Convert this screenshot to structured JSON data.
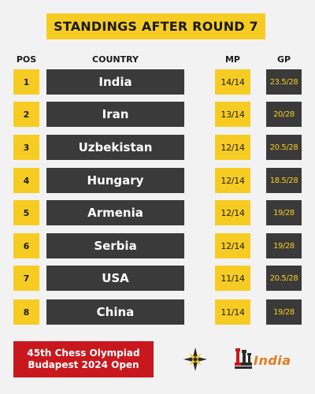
{
  "title": "STANDINGS AFTER ROUND 7",
  "headers": {
    "pos": "POS",
    "country": "COUNTRY",
    "mp": "MP",
    "gp": "GP"
  },
  "rows": [
    {
      "pos": "1",
      "country": "India",
      "mp": "14/14",
      "gp": "23.5/28"
    },
    {
      "pos": "2",
      "country": "Iran",
      "mp": "13/14",
      "gp": "20/28"
    },
    {
      "pos": "3",
      "country": "Uzbekistan",
      "mp": "12/14",
      "gp": "20.5/28"
    },
    {
      "pos": "4",
      "country": "Hungary",
      "mp": "12/14",
      "gp": "18.5/28"
    },
    {
      "pos": "5",
      "country": "Armenia",
      "mp": "12/14",
      "gp": "19/28"
    },
    {
      "pos": "6",
      "country": "Serbia",
      "mp": "12/14",
      "gp": "19/28"
    },
    {
      "pos": "7",
      "country": "USA",
      "mp": "11/14",
      "gp": "20.5/28"
    },
    {
      "pos": "8",
      "country": "China",
      "mp": "11/14",
      "gp": "19/28"
    }
  ],
  "event": {
    "line1": "45th Chess Olympiad",
    "line2": "Budapest 2024 Open"
  },
  "brand": {
    "wordmark": "India",
    "logo_icon": "chess-pieces-icon",
    "olympiad_icon": "olympiad-star-icon"
  },
  "colors": {
    "yellow": "#f7cc22",
    "dark": "#3a3a3a",
    "red": "#c8181e",
    "background": "#f2f2f2"
  }
}
